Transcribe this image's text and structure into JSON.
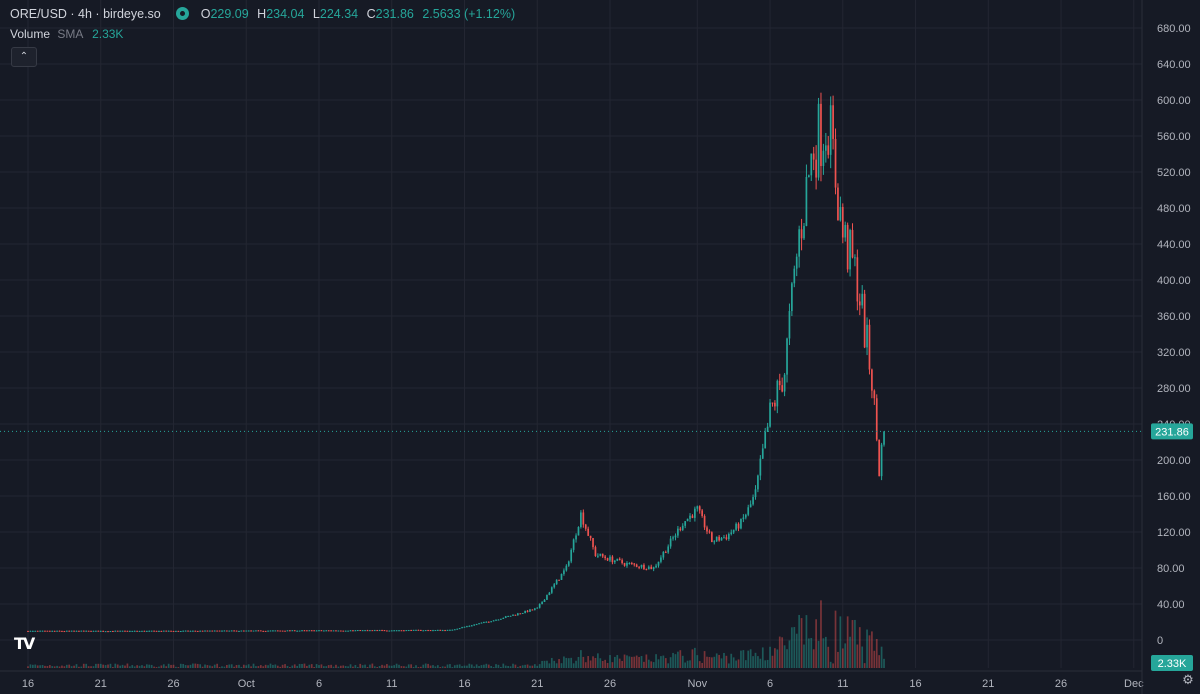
{
  "legend": {
    "symbol": "ORE/USD · 4h · birdeye.so",
    "o_label": "O",
    "o_value": "229.09",
    "h_label": "H",
    "h_value": "234.04",
    "l_label": "L",
    "l_value": "224.34",
    "c_label": "C",
    "c_value": "231.86",
    "change": "2.5633 (+1.12%)",
    "volume_label": "Volume",
    "volume_sma": "SMA",
    "volume_value": "2.33K"
  },
  "price_tag": "231.86",
  "volume_tag": "2.33K",
  "colors": {
    "up": "#26a69a",
    "down": "#ef5350",
    "background": "#161a25",
    "grid": "#232632",
    "text": "#d1d4dc"
  },
  "icons": {
    "collapse": "chevron-up-icon",
    "logo": "tradingview-logo-icon",
    "settings": "gear-icon"
  },
  "chart_data": {
    "type": "candlestick",
    "timeframe": "4h",
    "y_ticks": [
      "680.00",
      "640.00",
      "600.00",
      "560.00",
      "520.00",
      "480.00",
      "440.00",
      "400.00",
      "360.00",
      "320.00",
      "280.00",
      "240.00",
      "200.00",
      "160.00",
      "120.00",
      "80.00",
      "40.00",
      "0"
    ],
    "ylim": [
      0,
      680
    ],
    "x_ticks": [
      "16",
      "21",
      "26",
      "Oct",
      "6",
      "11",
      "16",
      "21",
      "26",
      "Nov",
      "6",
      "11",
      "16",
      "21",
      "26",
      "Dec"
    ],
    "last_price": 231.86,
    "grid": true,
    "anchors": [
      [
        "Sep 16",
        10
      ],
      [
        "Sep 24",
        10
      ],
      [
        "Sep 25",
        10
      ],
      [
        "Oct 15",
        11
      ],
      [
        "Oct 18",
        22
      ],
      [
        "Oct 21",
        35
      ],
      [
        "Oct 23",
        80
      ],
      [
        "Oct 24",
        140
      ],
      [
        "Oct 25",
        95
      ],
      [
        "Oct 27",
        85
      ],
      [
        "Oct 29",
        80
      ],
      [
        "Oct 31",
        130
      ],
      [
        "Nov 1",
        145
      ],
      [
        "Nov 2",
        110
      ],
      [
        "Nov 3",
        115
      ],
      [
        "Nov 4",
        130
      ],
      [
        "Nov 5",
        160
      ],
      [
        "Nov 6",
        250
      ],
      [
        "Nov 7",
        300
      ],
      [
        "Nov 8",
        450
      ],
      [
        "Nov 9",
        550
      ],
      [
        "Nov 10",
        580
      ],
      [
        "Nov 11",
        450
      ],
      [
        "Nov 12",
        400
      ],
      [
        "Nov 13",
        290
      ],
      [
        "Nov 13 12:00",
        190
      ],
      [
        "Nov 13 20:00",
        231.86
      ]
    ]
  }
}
